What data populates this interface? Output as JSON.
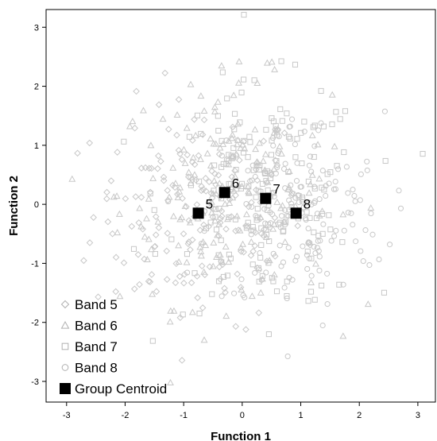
{
  "chart_data": {
    "type": "scatter",
    "xlabel": "Function 1",
    "ylabel": "Function 2",
    "xlim": [
      -3.35,
      3.3
    ],
    "ylim": [
      -3.35,
      3.3
    ],
    "xticks": [
      -3,
      -2,
      -1,
      0,
      1,
      2,
      3
    ],
    "yticks": [
      -3,
      -2,
      -1,
      0,
      1,
      2,
      3
    ],
    "grid": false,
    "legend_placement": "bottom-left",
    "point_color": "#c8c8c8",
    "centroid_color": "#000000",
    "series": [
      {
        "name": "Band 5",
        "marker": "diamond",
        "count": 180,
        "center": [
          -0.75,
          -0.15
        ],
        "spread": [
          0.9,
          0.95
        ]
      },
      {
        "name": "Band 6",
        "marker": "triangle",
        "count": 180,
        "center": [
          -0.3,
          0.2
        ],
        "spread": [
          0.9,
          0.95
        ]
      },
      {
        "name": "Band 7",
        "marker": "square",
        "count": 180,
        "center": [
          0.4,
          0.1
        ],
        "spread": [
          0.85,
          0.95
        ]
      },
      {
        "name": "Band 8",
        "marker": "circle",
        "count": 170,
        "center": [
          0.92,
          -0.15
        ],
        "spread": [
          0.75,
          0.85
        ]
      }
    ],
    "centroids": [
      {
        "label": "5",
        "x": -0.75,
        "y": -0.15
      },
      {
        "label": "6",
        "x": -0.3,
        "y": 0.2
      },
      {
        "label": "7",
        "x": 0.4,
        "y": 0.1
      },
      {
        "label": "8",
        "x": 0.92,
        "y": -0.15
      }
    ],
    "legend": [
      {
        "label": "Band 5",
        "marker": "diamond"
      },
      {
        "label": "Band 6",
        "marker": "triangle"
      },
      {
        "label": "Band 7",
        "marker": "square"
      },
      {
        "label": "Band 8",
        "marker": "circle"
      },
      {
        "label": "Group Centroid",
        "marker": "filled-square"
      }
    ]
  }
}
